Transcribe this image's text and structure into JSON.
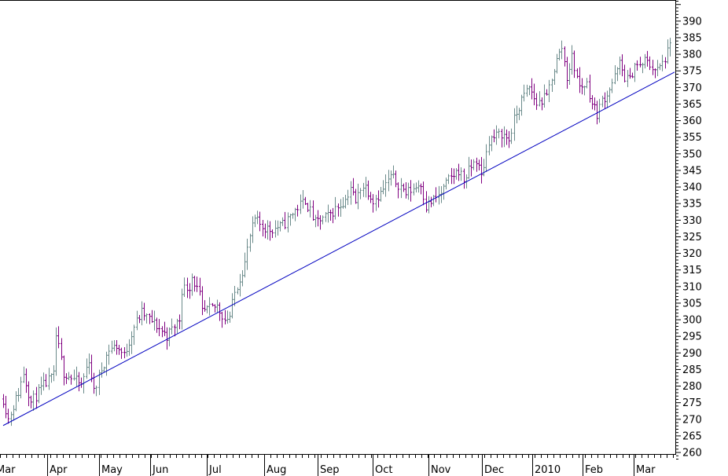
{
  "chart_data": {
    "type": "ohlc",
    "title": "",
    "xlabel": "",
    "ylabel": "",
    "ylim": [
      258,
      396
    ],
    "y_ticks": [
      260,
      265,
      270,
      275,
      280,
      285,
      290,
      295,
      300,
      305,
      310,
      315,
      320,
      325,
      330,
      335,
      340,
      345,
      350,
      355,
      360,
      365,
      370,
      375,
      380,
      385,
      390
    ],
    "y_axis_position": "right",
    "grid": false,
    "x_tick_labels": [
      "Mar",
      "Apr",
      "May",
      "Jun",
      "Jul",
      "Aug",
      "Sep",
      "Oct",
      "Nov",
      "Dec",
      "2010",
      "Feb",
      "Mar"
    ],
    "colors": {
      "up_bar": "#6a8a8a",
      "down_bar": "#800080",
      "trendline": "#0000c0",
      "axis": "#000000"
    },
    "trendline": {
      "start": {
        "x_index": 0,
        "y": 268
      },
      "end": {
        "x_index": 265,
        "y": 374.5
      }
    },
    "price_path": [
      [
        0,
        276
      ],
      [
        2,
        270
      ],
      [
        6,
        278
      ],
      [
        8,
        284
      ],
      [
        11,
        275
      ],
      [
        16,
        280
      ],
      [
        20,
        283
      ],
      [
        21,
        295
      ],
      [
        24,
        284
      ],
      [
        28,
        282
      ],
      [
        31,
        280
      ],
      [
        34,
        288
      ],
      [
        36,
        278
      ],
      [
        39,
        285
      ],
      [
        42,
        291
      ],
      [
        45,
        292
      ],
      [
        48,
        289
      ],
      [
        52,
        298
      ],
      [
        55,
        302
      ],
      [
        61,
        298
      ],
      [
        65,
        295
      ],
      [
        68,
        298
      ],
      [
        70,
        300
      ],
      [
        71,
        309
      ],
      [
        74,
        310
      ],
      [
        75,
        313
      ],
      [
        78,
        307
      ],
      [
        79,
        302
      ],
      [
        82,
        303
      ],
      [
        85,
        304
      ],
      [
        88,
        300
      ],
      [
        90,
        301
      ],
      [
        92,
        308
      ],
      [
        96,
        317
      ],
      [
        98,
        325
      ],
      [
        100,
        330
      ],
      [
        103,
        328
      ],
      [
        106,
        327
      ],
      [
        110,
        328
      ],
      [
        112,
        329
      ],
      [
        116,
        333
      ],
      [
        120,
        336
      ],
      [
        124,
        329
      ],
      [
        126,
        330
      ],
      [
        129,
        331
      ],
      [
        133,
        334
      ],
      [
        136,
        336
      ],
      [
        138,
        340
      ],
      [
        140,
        335
      ],
      [
        142,
        340
      ],
      [
        144,
        340
      ],
      [
        147,
        336
      ],
      [
        150,
        338
      ],
      [
        154,
        343
      ],
      [
        158,
        340
      ],
      [
        160,
        338
      ],
      [
        164,
        340
      ],
      [
        166,
        341
      ],
      [
        168,
        334
      ],
      [
        171,
        336
      ],
      [
        174,
        338
      ],
      [
        177,
        342
      ],
      [
        181,
        345
      ],
      [
        183,
        342
      ],
      [
        186,
        346
      ],
      [
        188,
        348
      ],
      [
        190,
        343
      ],
      [
        193,
        354
      ],
      [
        198,
        356
      ],
      [
        201,
        354
      ],
      [
        203,
        360
      ],
      [
        206,
        366
      ],
      [
        209,
        370
      ],
      [
        212,
        365
      ],
      [
        216,
        367
      ],
      [
        218,
        373
      ],
      [
        220,
        378
      ],
      [
        222,
        382
      ],
      [
        224,
        373
      ],
      [
        226,
        379
      ],
      [
        229,
        370
      ],
      [
        232,
        371
      ],
      [
        234,
        365
      ],
      [
        236,
        362
      ],
      [
        238,
        366
      ],
      [
        240,
        368
      ],
      [
        243,
        373
      ],
      [
        245,
        377
      ],
      [
        247,
        373
      ],
      [
        249,
        372
      ],
      [
        251,
        377
      ],
      [
        253,
        376
      ],
      [
        255,
        378
      ],
      [
        258,
        376
      ],
      [
        260,
        375
      ],
      [
        262,
        377
      ],
      [
        265,
        382
      ]
    ]
  }
}
